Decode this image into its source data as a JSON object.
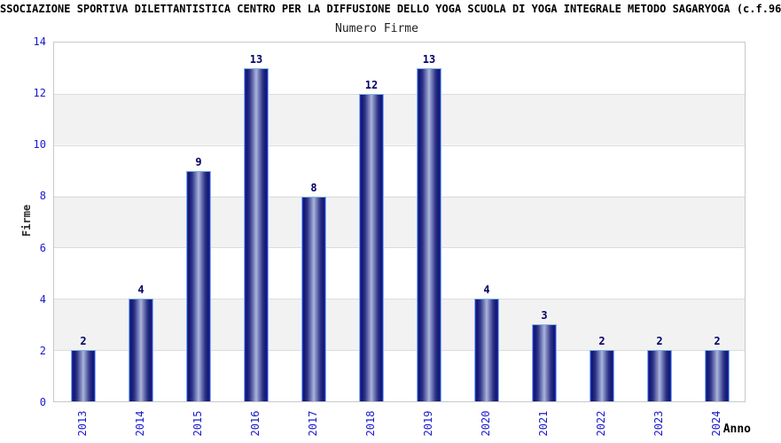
{
  "chart_data": {
    "type": "bar",
    "title": "SSOCIAZIONE SPORTIVA DILETTANTISTICA CENTRO PER LA DIFFUSIONE DELLO YOGA SCUOLA DI YOGA INTEGRALE METODO SAGARYOGA (c.f.96",
    "subtitle": "Numero Firme",
    "xlabel": "Anno",
    "ylabel": "Firme",
    "categories": [
      "2013",
      "2014",
      "2015",
      "2016",
      "2017",
      "2018",
      "2019",
      "2020",
      "2021",
      "2022",
      "2023",
      "2024"
    ],
    "values": [
      2,
      4,
      9,
      13,
      8,
      12,
      13,
      4,
      3,
      2,
      2,
      2
    ],
    "ylim": [
      0,
      14
    ],
    "yticks": [
      0,
      2,
      4,
      6,
      8,
      10,
      12,
      14
    ],
    "grid": "alternating horizontal bands with light gridlines at even values",
    "legend": "none",
    "colors": {
      "axis_label_text": "#1a1acc",
      "value_label_text": "#000066",
      "bar_dark": "#13136e",
      "bar_light": "#adb4da",
      "bar_border": "#7fb2e5",
      "band_gray": "#f2f2f2",
      "grid_line": "#dcdcdc",
      "plot_border": "#c8c8c8"
    }
  }
}
